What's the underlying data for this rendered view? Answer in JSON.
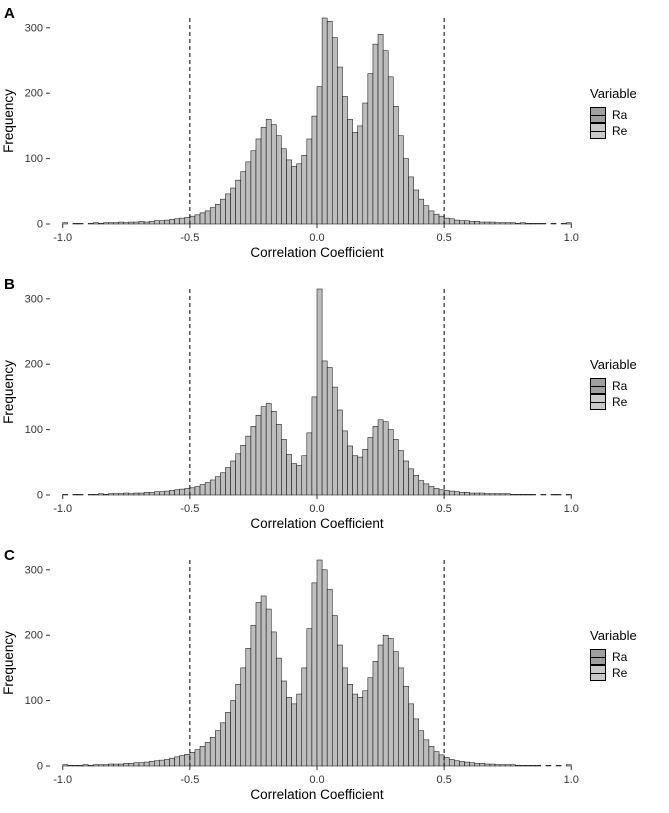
{
  "figure": {
    "colors": {
      "bar_fill": "#bdbdbd",
      "bar_stroke": "#000000",
      "vline": "#000000",
      "ra_fill": "#9f9f9f",
      "re_fill": "#c9c9c9"
    }
  },
  "chart_data": [
    {
      "type": "bar",
      "panel": "A",
      "title": "",
      "xlabel": "Correlation Coefficient",
      "ylabel": "Frequency",
      "xlim": [
        -1.05,
        1.05
      ],
      "ylim": [
        0,
        315
      ],
      "grid": false,
      "legend_position": "right",
      "x_ticks": {
        "values": [
          -1.0,
          -0.5,
          0.0,
          0.5,
          1.0
        ],
        "labels": [
          "-1.0",
          "-0.5",
          "0.0",
          "0.5",
          "1.0"
        ]
      },
      "y_ticks": {
        "values": [
          0,
          100,
          200,
          300
        ],
        "labels": [
          "0",
          "100",
          "200",
          "300"
        ]
      },
      "vlines": [
        -0.5,
        0.5
      ],
      "legend": {
        "title": "Variable",
        "entries": [
          {
            "label": "Ra"
          },
          {
            "label": "Re"
          }
        ]
      },
      "bins": {
        "start": -1.0,
        "width": 0.02
      },
      "frequencies": [
        2,
        0,
        1,
        1,
        0,
        1,
        2,
        1,
        2,
        2,
        2,
        3,
        2,
        3,
        3,
        4,
        3,
        4,
        5,
        5,
        6,
        7,
        8,
        9,
        10,
        12,
        14,
        17,
        20,
        25,
        30,
        38,
        46,
        55,
        67,
        80,
        95,
        112,
        130,
        148,
        160,
        152,
        135,
        115,
        98,
        88,
        92,
        105,
        130,
        165,
        210,
        320,
        310,
        285,
        240,
        195,
        160,
        140,
        150,
        185,
        230,
        275,
        290,
        265,
        225,
        180,
        135,
        100,
        72,
        52,
        38,
        28,
        20,
        15,
        12,
        9,
        8,
        6,
        5,
        5,
        4,
        4,
        3,
        3,
        3,
        2,
        2,
        2,
        2,
        1,
        2,
        1,
        1,
        1,
        1,
        0,
        1,
        0,
        1,
        2
      ]
    },
    {
      "type": "bar",
      "panel": "B",
      "title": "",
      "xlabel": "Correlation Coefficient",
      "ylabel": "Frequency",
      "xlim": [
        -1.05,
        1.05
      ],
      "ylim": [
        0,
        315
      ],
      "grid": false,
      "legend_position": "right",
      "x_ticks": {
        "values": [
          -1.0,
          -0.5,
          0.0,
          0.5,
          1.0
        ],
        "labels": [
          "-1.0",
          "-0.5",
          "0.0",
          "0.5",
          "1.0"
        ]
      },
      "y_ticks": {
        "values": [
          0,
          100,
          200,
          300
        ],
        "labels": [
          "0",
          "100",
          "200",
          "300"
        ]
      },
      "vlines": [
        -0.5,
        0.5
      ],
      "legend": {
        "title": "Variable",
        "entries": [
          {
            "label": "Ra"
          },
          {
            "label": "Re"
          }
        ]
      },
      "bins": {
        "start": -1.0,
        "width": 0.02
      },
      "frequencies": [
        1,
        0,
        1,
        1,
        0,
        1,
        1,
        2,
        1,
        2,
        2,
        2,
        3,
        2,
        3,
        3,
        4,
        4,
        5,
        5,
        6,
        7,
        8,
        9,
        10,
        11,
        13,
        16,
        19,
        23,
        28,
        34,
        42,
        52,
        63,
        76,
        90,
        105,
        122,
        135,
        140,
        128,
        108,
        85,
        62,
        48,
        45,
        60,
        95,
        150,
        315,
        205,
        195,
        165,
        130,
        98,
        75,
        60,
        58,
        70,
        88,
        105,
        115,
        112,
        100,
        85,
        68,
        52,
        40,
        30,
        22,
        17,
        13,
        10,
        8,
        7,
        6,
        5,
        4,
        4,
        3,
        3,
        3,
        2,
        2,
        2,
        2,
        2,
        1,
        1,
        1,
        1,
        1,
        0,
        1,
        0,
        1,
        1,
        0,
        1
      ]
    },
    {
      "type": "bar",
      "panel": "C",
      "title": "",
      "xlabel": "Correlation Coefficient",
      "ylabel": "Frequency",
      "xlim": [
        -1.05,
        1.05
      ],
      "ylim": [
        0,
        315
      ],
      "grid": false,
      "legend_position": "right",
      "x_ticks": {
        "values": [
          -1.0,
          -0.5,
          0.0,
          0.5,
          1.0
        ],
        "labels": [
          "-1.0",
          "-0.5",
          "0.0",
          "0.5",
          "1.0"
        ]
      },
      "y_ticks": {
        "values": [
          0,
          100,
          200,
          300
        ],
        "labels": [
          "0",
          "100",
          "200",
          "300"
        ]
      },
      "vlines": [
        -0.5,
        0.5
      ],
      "legend": {
        "title": "Variable",
        "entries": [
          {
            "label": "Ra"
          },
          {
            "label": "Re"
          }
        ]
      },
      "bins": {
        "start": -1.0,
        "width": 0.02
      },
      "frequencies": [
        2,
        1,
        1,
        1,
        2,
        1,
        2,
        2,
        2,
        3,
        3,
        3,
        4,
        4,
        5,
        5,
        6,
        7,
        8,
        9,
        10,
        12,
        14,
        16,
        18,
        21,
        25,
        30,
        36,
        44,
        54,
        66,
        82,
        100,
        125,
        150,
        180,
        215,
        250,
        260,
        240,
        205,
        165,
        130,
        105,
        95,
        110,
        150,
        210,
        280,
        315,
        300,
        270,
        230,
        185,
        150,
        125,
        110,
        105,
        115,
        135,
        160,
        185,
        200,
        195,
        175,
        150,
        122,
        95,
        72,
        54,
        40,
        30,
        22,
        17,
        13,
        10,
        8,
        7,
        6,
        5,
        4,
        4,
        3,
        3,
        2,
        2,
        2,
        2,
        1,
        1,
        1,
        1,
        1,
        0,
        1,
        0,
        1,
        0,
        2
      ]
    }
  ]
}
